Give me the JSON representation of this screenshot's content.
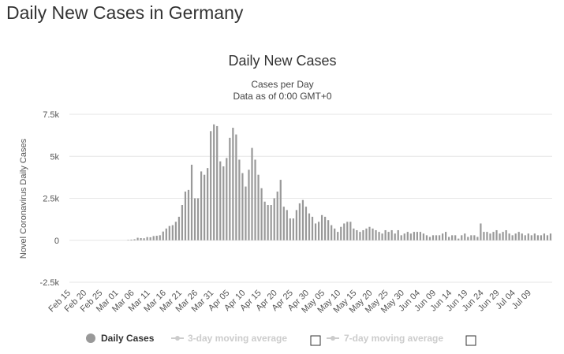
{
  "page": {
    "title": "Daily New Cases in Germany"
  },
  "chart_data": {
    "type": "bar",
    "title": "Daily New Cases",
    "subtitle_lines": [
      "Cases per Day",
      "Data as of 0:00 GMT+0"
    ],
    "ylabel": "Novel Coronavirus Daily Cases",
    "ylim": [
      -2500,
      7500
    ],
    "yticks": [
      -2500,
      0,
      2500,
      5000,
      7500
    ],
    "ytick_labels": [
      "-2.5k",
      "0",
      "2.5k",
      "5k",
      "7.5k"
    ],
    "grid": true,
    "start_date": "Feb 15",
    "xtick_labels": [
      "Feb 15",
      "Feb 20",
      "Feb 25",
      "Mar 01",
      "Mar 06",
      "Mar 11",
      "Mar 16",
      "Mar 21",
      "Mar 26",
      "Mar 31",
      "Apr 05",
      "Apr 10",
      "Apr 15",
      "Apr 20",
      "Apr 25",
      "Apr 30",
      "May 05",
      "May 10",
      "May 15",
      "May 20",
      "May 25",
      "May 30",
      "Jun 04",
      "Jun 09",
      "Jun 14",
      "Jun 19",
      "Jun 24",
      "Jun 29",
      "Jul 04",
      "Jul 09"
    ],
    "colors": {
      "bars": "#999999",
      "grid": "#e6e6e6",
      "legend_active": "#999999",
      "legend_inactive": "#cccccc"
    },
    "series": [
      {
        "name": "Daily Cases",
        "values": [
          0,
          0,
          0,
          0,
          0,
          0,
          0,
          0,
          0,
          0,
          0,
          0,
          0,
          0,
          0,
          0,
          0,
          0,
          20,
          40,
          60,
          150,
          130,
          120,
          190,
          180,
          250,
          270,
          300,
          520,
          700,
          850,
          900,
          1100,
          1400,
          2100,
          2900,
          3000,
          4500,
          2500,
          2500,
          4100,
          3900,
          4300,
          6500,
          6900,
          6800,
          4700,
          4400,
          4900,
          6100,
          6700,
          6300,
          4800,
          4000,
          3200,
          4200,
          5500,
          4800,
          3900,
          3100,
          2300,
          2100,
          2100,
          2500,
          2900,
          3600,
          2000,
          1800,
          1300,
          1300,
          1800,
          2200,
          2400,
          2000,
          1600,
          1400,
          1000,
          1100,
          1500,
          1400,
          1200,
          900,
          700,
          500,
          800,
          1000,
          1100,
          1100,
          700,
          600,
          500,
          600,
          700,
          800,
          700,
          600,
          500,
          400,
          600,
          500,
          600,
          400,
          600,
          300,
          400,
          500,
          400,
          500,
          500,
          500,
          400,
          300,
          200,
          300,
          300,
          300,
          400,
          500,
          200,
          300,
          300,
          100,
          300,
          400,
          200,
          300,
          300,
          200,
          1000,
          500,
          500,
          400,
          500,
          600,
          400,
          500,
          600,
          400,
          300,
          400,
          500,
          400,
          300,
          400,
          300,
          400,
          300,
          300,
          400,
          300,
          400
        ]
      },
      {
        "name": "3-day moving average",
        "values": []
      },
      {
        "name": "7-day moving average",
        "values": []
      }
    ],
    "legend": {
      "placement": "bottom",
      "items": [
        {
          "label": "Daily Cases",
          "state": "active",
          "symbol": "circle"
        },
        {
          "label": "3-day moving average",
          "state": "inactive",
          "symbol": "line-marker"
        },
        {
          "label": "7-day moving average",
          "state": "inactive",
          "symbol": "line-marker"
        }
      ]
    }
  }
}
